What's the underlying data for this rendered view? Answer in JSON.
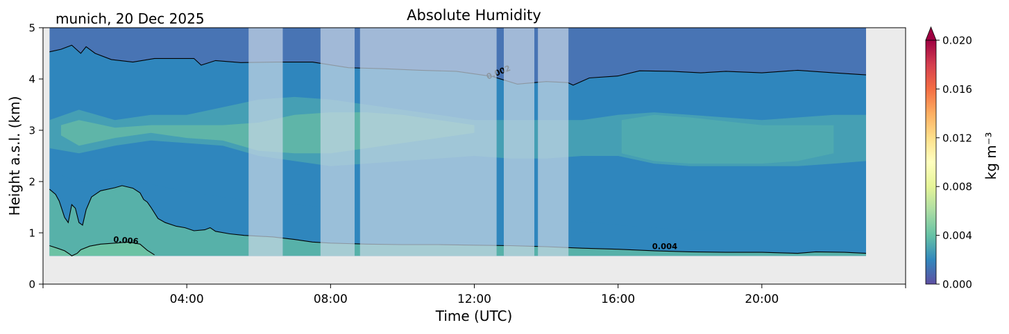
{
  "chart_data": {
    "type": "heatmap",
    "title": "Absolute Humidity",
    "subtitle": "munich, 20 Dec 2025",
    "xlabel": "Time (UTC)",
    "ylabel": "Height a.s.l. (km)",
    "xlim_hours": [
      0,
      24
    ],
    "ylim": [
      0,
      5
    ],
    "xticks": [
      {
        "h": 4,
        "label": "04:00"
      },
      {
        "h": 8,
        "label": "08:00"
      },
      {
        "h": 12,
        "label": "12:00"
      },
      {
        "h": 16,
        "label": "16:00"
      },
      {
        "h": 20,
        "label": "20:00"
      }
    ],
    "yticks": [
      0,
      1,
      2,
      3,
      4,
      5
    ],
    "data_extent": {
      "t_start": 0.18,
      "t_end": 22.9,
      "z_min": 0.55,
      "z_max": 5.0
    },
    "grid": false,
    "background_color": "#ebebeb",
    "field_colors": {
      "above_4km": "#4874b4",
      "3_to_4km": "#2f86bd",
      "2_to_3km_moist_layer": "#459fb4",
      "1_to_2km": "#2f86bd",
      "0_7_to_1km": "#57b1a9",
      "below_0_7km": "#6cc2a4"
    },
    "masked_periods": [
      {
        "start": 5.72,
        "end": 6.67
      },
      {
        "start": 7.72,
        "end": 8.67
      },
      {
        "start": 8.82,
        "end": 12.62
      },
      {
        "start": 12.82,
        "end": 13.67
      },
      {
        "start": 13.77,
        "end": 14.62
      }
    ],
    "mask_color": "#c8d7e6",
    "contours": [
      {
        "level": 0.002,
        "label": "0.002",
        "label_at": {
          "t": 12.7,
          "z": 4.08,
          "angle": -22
        },
        "points": [
          [
            0.18,
            4.53
          ],
          [
            0.5,
            4.58
          ],
          [
            0.8,
            4.66
          ],
          [
            1.05,
            4.5
          ],
          [
            1.2,
            4.63
          ],
          [
            1.45,
            4.5
          ],
          [
            1.9,
            4.38
          ],
          [
            2.5,
            4.33
          ],
          [
            3.1,
            4.4
          ],
          [
            4.2,
            4.4
          ],
          [
            4.4,
            4.27
          ],
          [
            4.8,
            4.36
          ],
          [
            5.5,
            4.32
          ],
          [
            6.5,
            4.33
          ],
          [
            7.5,
            4.33
          ],
          [
            8.5,
            4.22
          ],
          [
            9.5,
            4.2
          ],
          [
            10.5,
            4.17
          ],
          [
            11.5,
            4.15
          ],
          [
            12.5,
            4.05
          ],
          [
            13.2,
            3.9
          ],
          [
            14.0,
            3.95
          ],
          [
            14.6,
            3.93
          ],
          [
            14.75,
            3.88
          ],
          [
            15.2,
            4.02
          ],
          [
            16.0,
            4.06
          ],
          [
            16.6,
            4.16
          ],
          [
            17.5,
            4.15
          ],
          [
            18.3,
            4.12
          ],
          [
            19.0,
            4.15
          ],
          [
            20.0,
            4.12
          ],
          [
            21.0,
            4.17
          ],
          [
            22.0,
            4.12
          ],
          [
            22.9,
            4.08
          ]
        ]
      },
      {
        "level": 0.004,
        "label": "0.004",
        "label_at": {
          "t": 17.3,
          "z": 0.68,
          "angle": 0
        },
        "points": [
          [
            0.18,
            1.85
          ],
          [
            0.35,
            1.75
          ],
          [
            0.45,
            1.62
          ],
          [
            0.6,
            1.3
          ],
          [
            0.7,
            1.2
          ],
          [
            0.8,
            1.55
          ],
          [
            0.9,
            1.48
          ],
          [
            1.0,
            1.2
          ],
          [
            1.1,
            1.15
          ],
          [
            1.2,
            1.45
          ],
          [
            1.35,
            1.7
          ],
          [
            1.6,
            1.82
          ],
          [
            2.0,
            1.88
          ],
          [
            2.2,
            1.92
          ],
          [
            2.5,
            1.87
          ],
          [
            2.7,
            1.78
          ],
          [
            2.8,
            1.65
          ],
          [
            2.9,
            1.6
          ],
          [
            3.0,
            1.5
          ],
          [
            3.2,
            1.28
          ],
          [
            3.4,
            1.2
          ],
          [
            3.7,
            1.13
          ],
          [
            3.95,
            1.1
          ],
          [
            4.2,
            1.04
          ],
          [
            4.5,
            1.06
          ],
          [
            4.65,
            1.1
          ],
          [
            4.8,
            1.03
          ],
          [
            5.2,
            0.98
          ],
          [
            5.6,
            0.95
          ],
          [
            6.4,
            0.92
          ],
          [
            7.0,
            0.87
          ],
          [
            7.5,
            0.82
          ],
          [
            8.0,
            0.8
          ],
          [
            9.0,
            0.78
          ],
          [
            10.0,
            0.77
          ],
          [
            11.0,
            0.77
          ],
          [
            12.0,
            0.76
          ],
          [
            13.0,
            0.75
          ],
          [
            14.0,
            0.73
          ],
          [
            15.0,
            0.7
          ],
          [
            16.0,
            0.68
          ],
          [
            17.0,
            0.65
          ],
          [
            18.0,
            0.63
          ],
          [
            19.0,
            0.62
          ],
          [
            20.0,
            0.62
          ],
          [
            21.0,
            0.6
          ],
          [
            21.5,
            0.63
          ],
          [
            22.3,
            0.62
          ],
          [
            22.9,
            0.6
          ]
        ]
      },
      {
        "level": 0.006,
        "label": "0.006",
        "label_at": {
          "t": 2.3,
          "z": 0.8,
          "angle": 5
        },
        "points": [
          [
            0.18,
            0.75
          ],
          [
            0.4,
            0.7
          ],
          [
            0.6,
            0.65
          ],
          [
            0.75,
            0.58
          ],
          [
            0.8,
            0.55
          ],
          [
            0.95,
            0.6
          ],
          [
            1.05,
            0.67
          ],
          [
            1.3,
            0.74
          ],
          [
            1.6,
            0.78
          ],
          [
            2.0,
            0.8
          ],
          [
            2.4,
            0.82
          ],
          [
            2.7,
            0.78
          ],
          [
            2.9,
            0.66
          ],
          [
            3.1,
            0.57
          ]
        ]
      }
    ],
    "colorbar": {
      "label": "kg m⁻³",
      "vmin": 0.0,
      "vmax": 0.02,
      "extend": "max",
      "ticks": [
        {
          "v": 0.0,
          "label": "0.000"
        },
        {
          "v": 0.004,
          "label": "0.004"
        },
        {
          "v": 0.008,
          "label": "0.008"
        },
        {
          "v": 0.012,
          "label": "0.012"
        },
        {
          "v": 0.016,
          "label": "0.016"
        },
        {
          "v": 0.02,
          "label": "0.020"
        }
      ],
      "colormap_stops": [
        "#5e4fa2",
        "#3288bd",
        "#66c2a5",
        "#abdda4",
        "#e6f598",
        "#ffffbf",
        "#fee08b",
        "#fdae61",
        "#f46d43",
        "#d53e4f",
        "#9e0142"
      ]
    }
  }
}
